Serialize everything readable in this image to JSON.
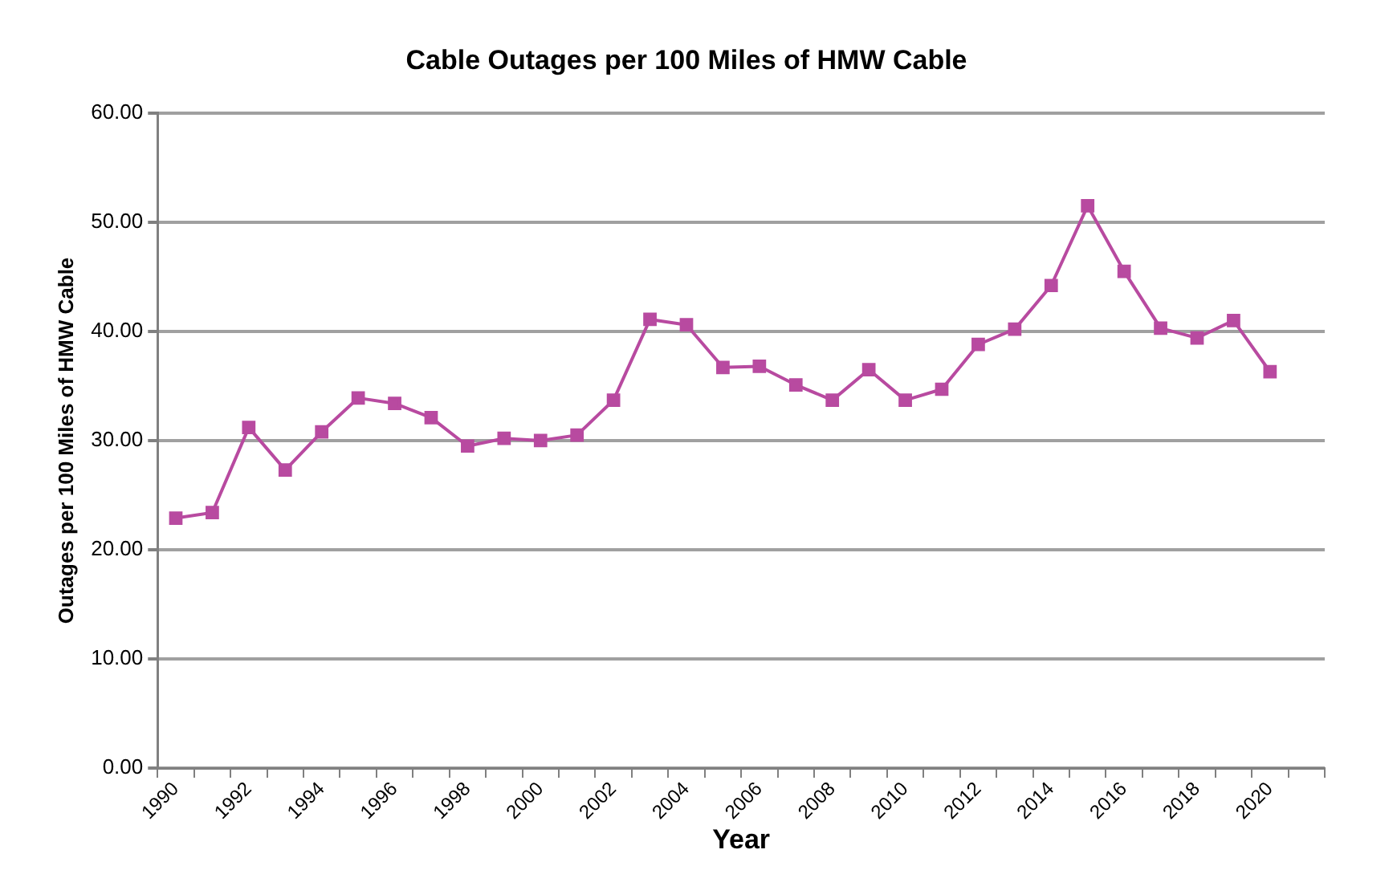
{
  "chart_data": {
    "type": "line",
    "title": "Cable Outages per 100 Miles of HMW Cable",
    "xlabel": "Year",
    "ylabel": "Outages per 100 Miles of HMW Cable",
    "categories": [
      "1990",
      null,
      "1992",
      null,
      "1994",
      null,
      "1996",
      null,
      "1998",
      null,
      "2000",
      null,
      "2002",
      null,
      "2004",
      null,
      "2006",
      null,
      "2008",
      null,
      "2010",
      null,
      "2012",
      null,
      "2014",
      null,
      "2016",
      null,
      "2018",
      null,
      "2020",
      null
    ],
    "series": [
      {
        "color": "#b84aa0",
        "values": [
          22.9,
          23.4,
          31.2,
          27.3,
          30.8,
          33.9,
          33.4,
          32.1,
          29.5,
          30.2,
          30.0,
          30.5,
          33.7,
          41.1,
          40.6,
          36.7,
          36.8,
          35.1,
          33.7,
          36.5,
          33.7,
          34.7,
          38.8,
          40.2,
          44.2,
          51.5,
          45.5,
          40.3,
          39.4,
          41.0,
          36.3,
          null
        ]
      }
    ],
    "ylim": [
      0,
      60
    ],
    "yticks": [
      {
        "value": 0,
        "label": "0.00"
      },
      {
        "value": 10,
        "label": "10.00"
      },
      {
        "value": 20,
        "label": "20.00"
      },
      {
        "value": 30,
        "label": "30.00"
      },
      {
        "value": 40,
        "label": "40.00"
      },
      {
        "value": 50,
        "label": "50.00"
      },
      {
        "value": 60,
        "label": "60.00"
      }
    ],
    "grid": "y",
    "marker": "square",
    "line_style": "solid"
  }
}
